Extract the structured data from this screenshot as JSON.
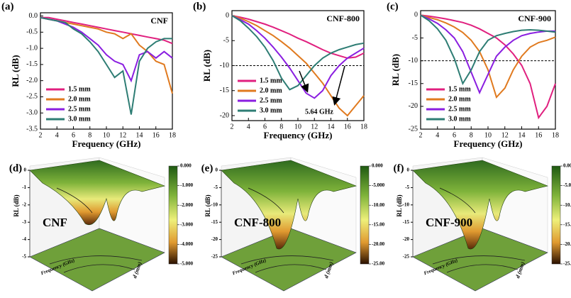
{
  "chart_data": [
    {
      "type": "line",
      "panel_label": "(a)",
      "title": "CNF",
      "xlabel": "Frequency (GHz)",
      "ylabel": "RL (dB)",
      "x": [
        2,
        3,
        4,
        5,
        6,
        7,
        8,
        9,
        10,
        11,
        12,
        13,
        14,
        15,
        16,
        17,
        18
      ],
      "xlim": [
        2,
        18
      ],
      "xticks": [
        2,
        4,
        6,
        8,
        10,
        12,
        14,
        16,
        18
      ],
      "ylim": [
        -3.5,
        0.1
      ],
      "yticks": [
        {
          "value": 0,
          "label": "0.0"
        },
        -0.5,
        {
          "value": -1,
          "label": "-1.0"
        },
        -1.5,
        {
          "value": -2,
          "label": "-2.0"
        },
        -2.5,
        {
          "value": -3,
          "label": "-3.0"
        },
        -3.5
      ],
      "legend": "lower-left",
      "series": [
        {
          "name": "1.5 mm",
          "color": "#e0207f",
          "values": [
            -0.05,
            -0.05,
            -0.1,
            -0.15,
            -0.2,
            -0.25,
            -0.3,
            -0.35,
            -0.4,
            -0.45,
            -0.5,
            -0.55,
            -0.6,
            -0.65,
            -0.7,
            -0.75,
            -0.85
          ]
        },
        {
          "name": "2.0 mm",
          "color": "#e07a1f",
          "values": [
            -0.05,
            -0.1,
            -0.15,
            -0.2,
            -0.25,
            -0.3,
            -0.35,
            -0.4,
            -0.5,
            -0.55,
            -0.7,
            -0.55,
            -0.9,
            -1.1,
            -1.4,
            -1.5,
            -2.4
          ]
        },
        {
          "name": "2.5 mm",
          "color": "#8a1ee0",
          "values": [
            -0.05,
            -0.1,
            -0.15,
            -0.25,
            -0.35,
            -0.5,
            -0.7,
            -0.9,
            -1.2,
            -1.4,
            -1.5,
            -2.0,
            -1.2,
            -1.1,
            -1.3,
            -1.1,
            -1.3
          ]
        },
        {
          "name": "3.0 mm",
          "color": "#2e7d74",
          "values": [
            -0.05,
            -0.1,
            -0.15,
            -0.2,
            -0.4,
            -0.55,
            -0.8,
            -1.1,
            -1.5,
            -1.9,
            -1.7,
            -3.05,
            -1.4,
            -1.0,
            -0.8,
            -0.7,
            -0.7
          ]
        }
      ]
    },
    {
      "type": "line",
      "panel_label": "(b)",
      "title": "CNF-800",
      "xlabel": "Frequency (GHz)",
      "ylabel": "RL (dB)",
      "annotation": "5.64 GHz",
      "ref_line": -10,
      "x": [
        2,
        3,
        4,
        5,
        6,
        7,
        8,
        9,
        10,
        11,
        12,
        13,
        14,
        15,
        16,
        17,
        18
      ],
      "xlim": [
        2,
        18
      ],
      "xticks": [
        2,
        4,
        6,
        8,
        10,
        12,
        14,
        16,
        18
      ],
      "ylim": [
        -21,
        1
      ],
      "yticks": [
        0,
        -5,
        -10,
        -15,
        -20
      ],
      "legend": "lower-left",
      "series": [
        {
          "name": "1.5 mm",
          "color": "#e0207f",
          "values": [
            0,
            -0.3,
            -0.7,
            -1.2,
            -1.7,
            -2.3,
            -3,
            -3.7,
            -4.5,
            -5.2,
            -6,
            -6.8,
            -7.5,
            -8,
            -8.5,
            -8.3,
            -7.5
          ]
        },
        {
          "name": "2.0 mm",
          "color": "#e07a1f",
          "values": [
            0,
            -0.5,
            -1.2,
            -2,
            -3,
            -4,
            -5.2,
            -6.5,
            -8,
            -9.5,
            -11.5,
            -13.5,
            -16,
            -18.5,
            -20,
            -18,
            -16
          ]
        },
        {
          "name": "2.5 mm",
          "color": "#8a1ee0",
          "values": [
            0,
            -0.8,
            -1.7,
            -3,
            -4.5,
            -6.3,
            -8.3,
            -10.5,
            -13,
            -15.5,
            -16.5,
            -15,
            -12,
            -10,
            -8.5,
            -7.5,
            -6.5
          ]
        },
        {
          "name": "3.0 mm",
          "color": "#2e7d74",
          "values": [
            0,
            -1,
            -2.5,
            -4.2,
            -6.3,
            -9,
            -12.5,
            -14.8,
            -14,
            -12,
            -10,
            -8.5,
            -7.5,
            -6.8,
            -6.3,
            -5.8,
            -5.5
          ]
        }
      ]
    },
    {
      "type": "line",
      "panel_label": "(c)",
      "title": "CNF-900",
      "xlabel": "Frequency (GHz)",
      "ylabel": "RL (dB)",
      "ref_line": -10,
      "x": [
        2,
        3,
        4,
        5,
        6,
        7,
        8,
        9,
        10,
        11,
        12,
        13,
        14,
        15,
        16,
        17,
        18
      ],
      "xlim": [
        2,
        18
      ],
      "xticks": [
        2,
        4,
        6,
        8,
        10,
        12,
        14,
        16,
        18
      ],
      "ylim": [
        -25,
        1
      ],
      "yticks": [
        0,
        -5,
        -10,
        -15,
        -20,
        -25
      ],
      "legend": "lower-left",
      "series": [
        {
          "name": "1.5 mm",
          "color": "#e0207f",
          "values": [
            0,
            -0.2,
            -0.5,
            -0.8,
            -1.2,
            -1.6,
            -2.2,
            -3,
            -4,
            -5,
            -6.5,
            -8.5,
            -11,
            -15,
            -22.5,
            -20,
            -15
          ]
        },
        {
          "name": "2.0 mm",
          "color": "#e07a1f",
          "values": [
            0,
            -0.5,
            -1,
            -1.7,
            -2.6,
            -3.8,
            -5.5,
            -8,
            -12,
            -18,
            -16,
            -12,
            -9,
            -7,
            -6,
            -5.5,
            -4.8
          ]
        },
        {
          "name": "2.5 mm",
          "color": "#8a1ee0",
          "values": [
            0,
            -0.8,
            -1.8,
            -3.2,
            -5,
            -8,
            -12.5,
            -17,
            -13,
            -9,
            -7,
            -5.5,
            -4.5,
            -4,
            -3.7,
            -3.5,
            -3.5
          ]
        },
        {
          "name": "3.0 mm",
          "color": "#2e7d74",
          "values": [
            0,
            -1.2,
            -3,
            -5.5,
            -9.5,
            -15,
            -12,
            -8,
            -5.5,
            -4.5,
            -4,
            -3.6,
            -3.3,
            -3.2,
            -3.3,
            -3.5,
            -3.7
          ]
        }
      ]
    },
    {
      "type": "surface3d",
      "panel_label": "(d)",
      "title": "CNF",
      "zlabel": "RL (dB)",
      "xlabel": "Frequency (GHz)",
      "ylabel": "d (mm)",
      "zlim": [
        -5,
        0
      ],
      "zticks": [
        0,
        -1,
        -2,
        -3,
        -4,
        -5
      ],
      "clim": [
        -5,
        0
      ],
      "colorbar_ticks": [
        {
          "value": 0,
          "label": "0.000"
        },
        {
          "value": -1,
          "label": "-1.000"
        },
        {
          "value": -2,
          "label": "-2.000"
        },
        {
          "value": -3,
          "label": "-3.000"
        },
        {
          "value": -4,
          "label": "-4.000"
        },
        {
          "value": -5,
          "label": "-5.000"
        }
      ]
    },
    {
      "type": "surface3d",
      "panel_label": "(e)",
      "title": "CNF-800",
      "zlabel": "RL (dB)",
      "xlabel": "Frequency (GHz)",
      "ylabel": "d (mm)",
      "zlim": [
        -25,
        0
      ],
      "zticks": [
        0,
        -5,
        -10,
        -15,
        -20,
        -25
      ],
      "clim": [
        -25,
        0
      ],
      "colorbar_ticks": [
        {
          "value": 0,
          "label": "0.000"
        },
        {
          "value": -5,
          "label": "-5.000"
        },
        {
          "value": -10,
          "label": "-10.00"
        },
        {
          "value": -15,
          "label": "-15.00"
        },
        {
          "value": -20,
          "label": "-20.00"
        },
        {
          "value": -25,
          "label": "-25.00"
        }
      ]
    },
    {
      "type": "surface3d",
      "panel_label": "(f)",
      "title": "CNF-900",
      "zlabel": "RL (dB)",
      "xlabel": "Frequency (GHz)",
      "ylabel": "d (mm)",
      "zlim": [
        -25,
        0
      ],
      "zticks": [
        0,
        -5,
        -10,
        -15,
        -20,
        -25
      ],
      "clim": [
        -25,
        0
      ],
      "colorbar_ticks": [
        {
          "value": 0,
          "label": "0.000"
        },
        {
          "value": -5,
          "label": "-5.000"
        },
        {
          "value": -10,
          "label": "-10.00"
        },
        {
          "value": -15,
          "label": "-15.00"
        },
        {
          "value": -20,
          "label": "-20.00"
        },
        {
          "value": -25,
          "label": "-25.00"
        }
      ]
    }
  ]
}
